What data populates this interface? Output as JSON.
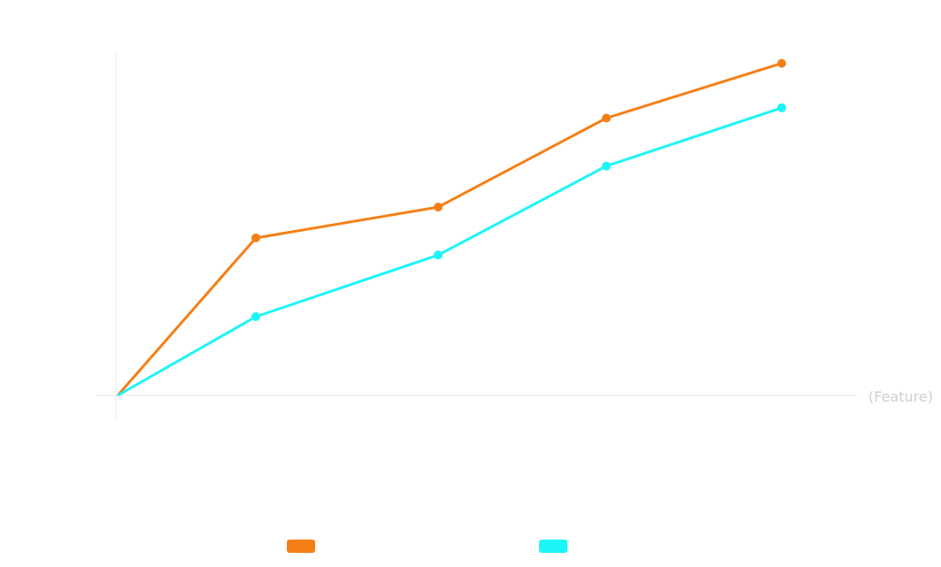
{
  "chart_data": {
    "type": "line",
    "title": "",
    "xlabel": "(Feature)",
    "ylabel": "",
    "x": [
      0,
      1,
      2,
      3,
      4
    ],
    "ylim": [
      0,
      100
    ],
    "grid": false,
    "legend_position": "bottom",
    "series": [
      {
        "color": "#f57f17",
        "values": [
          0,
          46,
          55,
          81,
          97
        ]
      },
      {
        "color": "#1cf5f8",
        "values": [
          0,
          23,
          41,
          67,
          84
        ]
      }
    ]
  }
}
